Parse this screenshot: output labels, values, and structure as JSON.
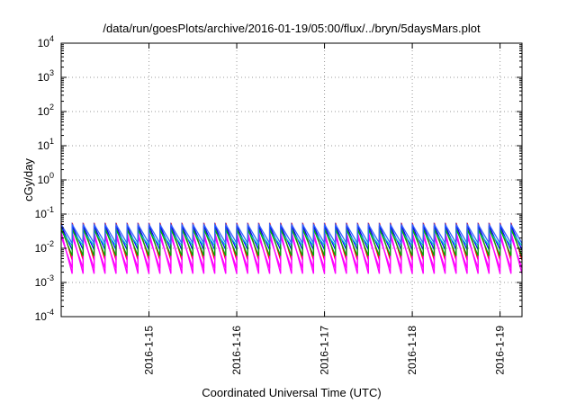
{
  "chart_data": {
    "type": "line",
    "title": "/data/run/goesPlots/archive/2016-01-19/05:00/flux/../bryn/5daysMars.plot",
    "xlabel": "Coordinated Universal Time (UTC)",
    "ylabel": "cGy/day",
    "y_scale": "log",
    "ylim": [
      0.0001,
      10000
    ],
    "y_ticks": [
      {
        "base": "10",
        "exp": "-4"
      },
      {
        "base": "10",
        "exp": "-3"
      },
      {
        "base": "10",
        "exp": "-2"
      },
      {
        "base": "10",
        "exp": "-1"
      },
      {
        "base": "10",
        "exp": "0"
      },
      {
        "base": "10",
        "exp": "1"
      },
      {
        "base": "10",
        "exp": "2"
      },
      {
        "base": "10",
        "exp": "3"
      },
      {
        "base": "10",
        "exp": "4"
      }
    ],
    "xlim": [
      "2016-01-14 00:00",
      "2016-01-19 06:00"
    ],
    "x_ticks": [
      "2016-1-15",
      "2016-1-16",
      "2016-1-17",
      "2016-1-18",
      "2016-1-19"
    ],
    "grid": true,
    "legend": "none",
    "sawtooth_period_hours": 3,
    "series": [
      {
        "color": "#ff0000",
        "peak": 0.055,
        "trough": 0.0045
      },
      {
        "color": "#ff00ff",
        "peak": 0.03,
        "trough": 0.0018
      },
      {
        "color": "#ff00ff",
        "peak": 0.022,
        "trough": 0.0026
      },
      {
        "color": "#0000ff",
        "peak": 0.045,
        "trough": 0.009
      },
      {
        "color": "#00cccc",
        "peak": 0.032,
        "trough": 0.012
      },
      {
        "color": "#00aa00",
        "peak": 0.038,
        "trough": 0.006
      },
      {
        "color": "#3366ff",
        "peak": 0.05,
        "trough": 0.014
      }
    ]
  }
}
